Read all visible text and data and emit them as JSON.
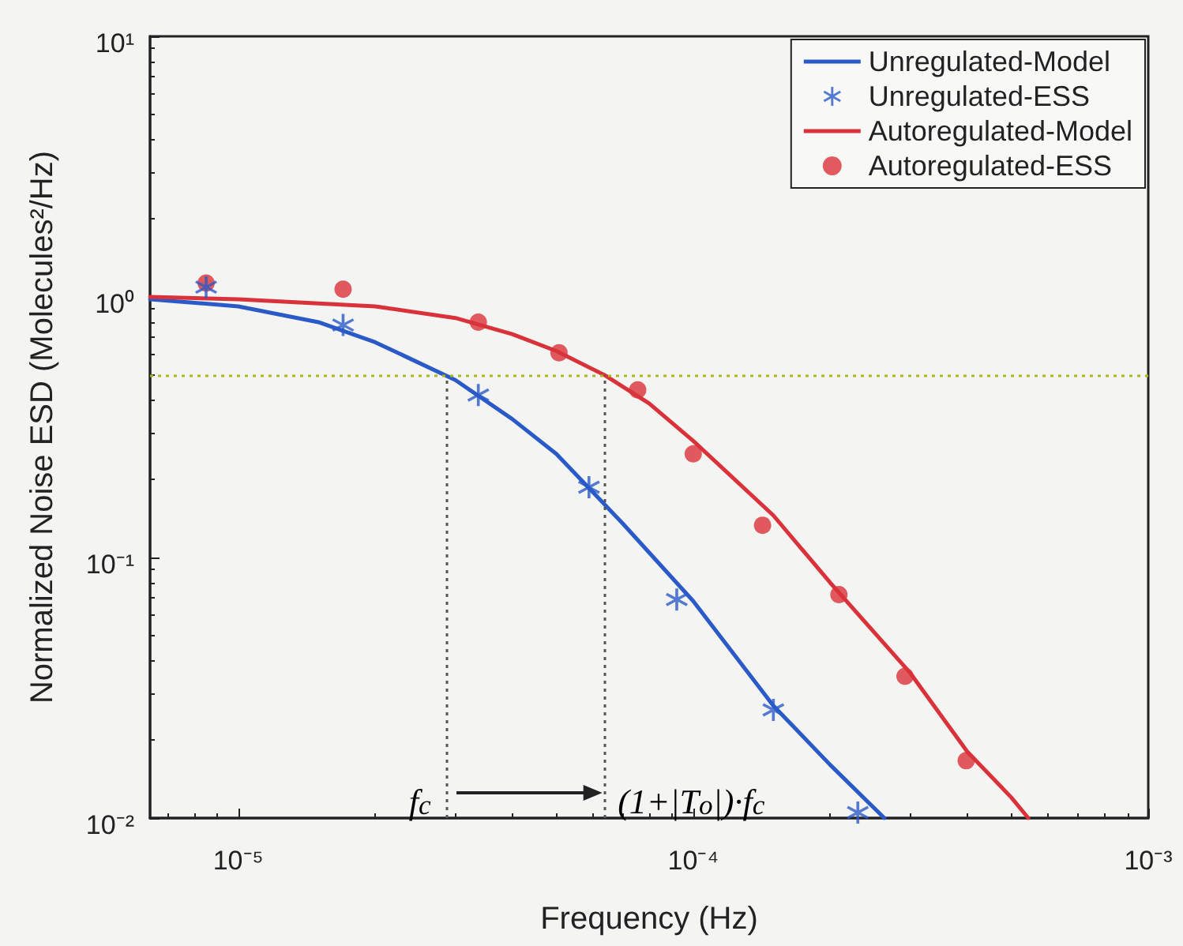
{
  "chart_data": {
    "type": "line",
    "xlabel": "Frequency (Hz)",
    "ylabel": "Normalized Noise ESD (Molecules²/Hz)",
    "log": "xy",
    "xlim": [
      6.4e-06,
      0.001
    ],
    "ylim": [
      0.01,
      10
    ],
    "xticks": [
      {
        "value": 1e-05,
        "label": "10⁻⁵"
      },
      {
        "value": 0.0001,
        "label": "10⁻⁴"
      },
      {
        "value": 0.001,
        "label": "10⁻³"
      }
    ],
    "yticks": [
      {
        "value": 0.01,
        "label": "10⁻²"
      },
      {
        "value": 0.1,
        "label": "10⁻¹"
      },
      {
        "value": 1,
        "label": "10⁰"
      },
      {
        "value": 10,
        "label": "10¹"
      }
    ],
    "grid": false,
    "legend": "top right",
    "series": [
      {
        "name": "Unregulated-Model",
        "color": "#2a5ac8",
        "marker": "none",
        "line_style": "solid",
        "x": [
          6.4e-06,
          1e-05,
          1.5e-05,
          2e-05,
          3e-05,
          4e-05,
          5e-05,
          7e-05,
          0.0001,
          0.00015,
          0.0002,
          0.000263
        ],
        "values": [
          0.98,
          0.92,
          0.8,
          0.67,
          0.48,
          0.34,
          0.25,
          0.135,
          0.068,
          0.027,
          0.016,
          0.01
        ]
      },
      {
        "name": "Unregulated-ESS",
        "type": "scatter",
        "color": "#2a5ac8",
        "marker": "cross",
        "x": [
          8.5e-06,
          1.7e-05,
          3.37e-05,
          5.9e-05,
          9.2e-05,
          0.00015,
          0.00023
        ],
        "values": [
          1.09,
          0.78,
          0.42,
          0.186,
          0.069,
          0.026,
          0.0105
        ]
      },
      {
        "name": "Autoregulated-Model",
        "color": "#d9323a",
        "marker": "none",
        "line_style": "solid",
        "x": [
          6.4e-06,
          1e-05,
          2e-05,
          3e-05,
          4e-05,
          5e-05,
          6.4e-05,
          8e-05,
          0.0001,
          0.00015,
          0.0002,
          0.0003,
          0.0004,
          0.0005,
          0.000545
        ],
        "values": [
          1.0,
          0.98,
          0.92,
          0.83,
          0.72,
          0.62,
          0.5,
          0.39,
          0.28,
          0.145,
          0.08,
          0.036,
          0.018,
          0.012,
          0.01
        ]
      },
      {
        "name": "Autoregulated-ESS",
        "type": "scatter",
        "color": "#d9323a",
        "marker": "circle",
        "x": [
          8.5e-06,
          1.7e-05,
          3.37e-05,
          5.07e-05,
          7.55e-05,
          0.0001,
          0.000142,
          0.000209,
          0.000292,
          0.000398
        ],
        "values": [
          1.13,
          1.07,
          0.8,
          0.61,
          0.44,
          0.25,
          0.133,
          0.072,
          0.035,
          0.0166
        ]
      }
    ],
    "ref_lines": [
      {
        "axis": "y",
        "value": 0.5,
        "color": "#a8b820",
        "line_style": "dotted"
      },
      {
        "axis": "x",
        "value": 2.87e-05,
        "color": "#555555",
        "line_style": "dotted"
      },
      {
        "axis": "x",
        "value": 6.4e-05,
        "color": "#555555",
        "line_style": "dotted"
      }
    ],
    "annotations": [
      "f$_{c}$",
      "(1+|T$_{o}$|)·f$_{c}$"
    ]
  }
}
